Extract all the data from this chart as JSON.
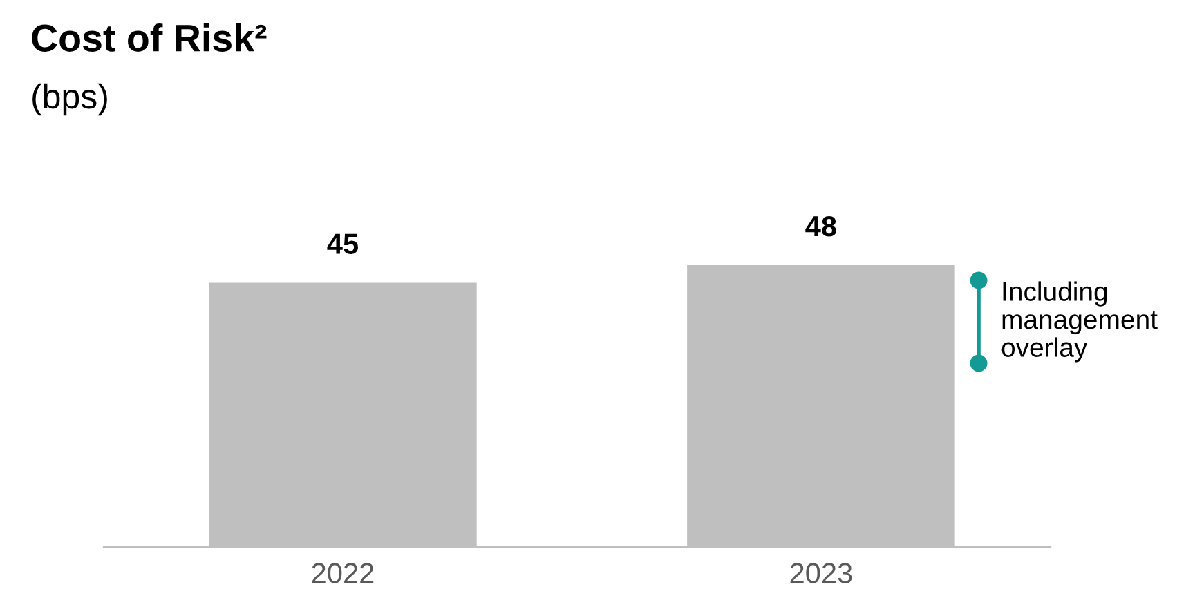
{
  "chart_data": {
    "type": "bar",
    "title": "Cost of Risk²",
    "subtitle": "(bps)",
    "categories": [
      "2022",
      "2023"
    ],
    "values": [
      45,
      48
    ],
    "color": "#bfbfbf",
    "data_labels": true,
    "grid": false,
    "legend": false,
    "tick_labels": "x",
    "annotations": [
      "Including\nmanagement\noverlay"
    ]
  }
}
